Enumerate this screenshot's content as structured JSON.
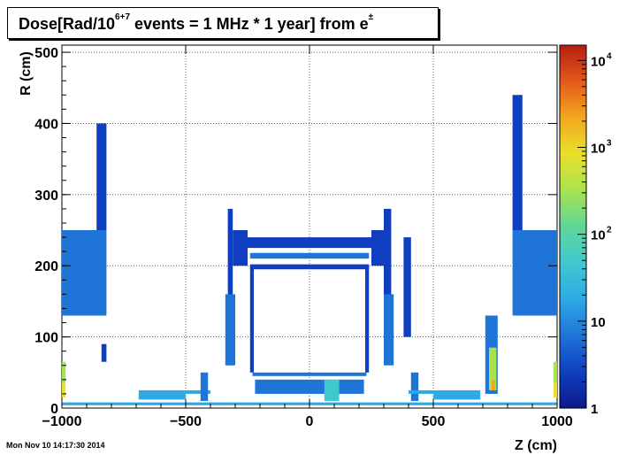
{
  "chart_data": {
    "type": "heatmap",
    "title_parts": {
      "pre": "Dose[Rad/10",
      "sup1": "6+7",
      "mid": " events = 1 MHz * 1 year] from e",
      "sup2": "±"
    },
    "xlabel": "Z (cm)",
    "ylabel": "R (cm)",
    "xlim": [
      -1000,
      1000
    ],
    "ylim": [
      0,
      510
    ],
    "x_ticks": [
      {
        "value": -1000,
        "label": "−1000"
      },
      {
        "value": -500,
        "label": "−500"
      },
      {
        "value": 0,
        "label": "0"
      },
      {
        "value": 500,
        "label": "500"
      },
      {
        "value": 1000,
        "label": "1000"
      }
    ],
    "y_ticks": [
      {
        "value": 0,
        "label": "0"
      },
      {
        "value": 100,
        "label": "100"
      },
      {
        "value": 200,
        "label": "200"
      },
      {
        "value": 300,
        "label": "300"
      },
      {
        "value": 400,
        "label": "400"
      },
      {
        "value": 500,
        "label": "500"
      }
    ],
    "grid": true,
    "colorscale": "log",
    "zlim": [
      1,
      15000
    ],
    "colorbar_ticks": [
      {
        "value": 1,
        "base": "1",
        "exp": ""
      },
      {
        "value": 10,
        "base": "10",
        "exp": ""
      },
      {
        "value": 100,
        "base": "10",
        "exp": "2"
      },
      {
        "value": 1000,
        "base": "10",
        "exp": "3"
      },
      {
        "value": 10000,
        "base": "10",
        "exp": "4"
      }
    ],
    "colormap": [
      "#0c1a8c",
      "#0f3fc0",
      "#1f74d8",
      "#2ea9e6",
      "#3fc9cf",
      "#5fd79a",
      "#a9e24f",
      "#e8e02a",
      "#f2a81f",
      "#e4591a",
      "#b51e12"
    ],
    "regions": [
      {
        "z": [
          -1000,
          -820
        ],
        "r": [
          130,
          250
        ],
        "dose": 8
      },
      {
        "z": [
          -860,
          -820
        ],
        "r": [
          250,
          400
        ],
        "dose": 2
      },
      {
        "z": [
          -1000,
          -985
        ],
        "r": [
          35,
          65
        ],
        "dose": 300
      },
      {
        "z": [
          -1000,
          -985
        ],
        "r": [
          15,
          35
        ],
        "dose": 1200
      },
      {
        "z": [
          -840,
          -820
        ],
        "r": [
          65,
          90
        ],
        "dose": 4
      },
      {
        "z": [
          -690,
          -500
        ],
        "r": [
          12,
          20
        ],
        "dose": 12
      },
      {
        "z": [
          -690,
          -400
        ],
        "r": [
          20,
          25
        ],
        "dose": 20
      },
      {
        "z": [
          -440,
          -410
        ],
        "r": [
          10,
          50
        ],
        "dose": 6
      },
      {
        "z": [
          -330,
          -310
        ],
        "r": [
          130,
          280
        ],
        "dose": 3
      },
      {
        "z": [
          -340,
          -300
        ],
        "r": [
          60,
          160
        ],
        "dose": 5
      },
      {
        "z": [
          -310,
          -250
        ],
        "r": [
          200,
          250
        ],
        "dose": 3
      },
      {
        "z": [
          -250,
          250
        ],
        "r": [
          225,
          240
        ],
        "dose": 4
      },
      {
        "z": [
          -240,
          240
        ],
        "r": [
          210,
          218
        ],
        "dose": 5
      },
      {
        "z": [
          -240,
          240
        ],
        "r": [
          195,
          202
        ],
        "dose": 3
      },
      {
        "z": [
          -240,
          -225
        ],
        "r": [
          50,
          200
        ],
        "dose": 4
      },
      {
        "z": [
          225,
          240
        ],
        "r": [
          50,
          200
        ],
        "dose": 4
      },
      {
        "z": [
          -230,
          230
        ],
        "r": [
          45,
          50
        ],
        "dose": 6
      },
      {
        "z": [
          -220,
          220
        ],
        "r": [
          20,
          40
        ],
        "dose": 8
      },
      {
        "z": [
          60,
          120
        ],
        "r": [
          10,
          40
        ],
        "dose": 30
      },
      {
        "z": [
          250,
          310
        ],
        "r": [
          200,
          250
        ],
        "dose": 3
      },
      {
        "z": [
          300,
          330
        ],
        "r": [
          130,
          280
        ],
        "dose": 3
      },
      {
        "z": [
          300,
          340
        ],
        "r": [
          60,
          160
        ],
        "dose": 5
      },
      {
        "z": [
          380,
          410
        ],
        "r": [
          100,
          240
        ],
        "dose": 3
      },
      {
        "z": [
          410,
          440
        ],
        "r": [
          10,
          50
        ],
        "dose": 6
      },
      {
        "z": [
          400,
          690
        ],
        "r": [
          20,
          25
        ],
        "dose": 20
      },
      {
        "z": [
          500,
          690
        ],
        "r": [
          12,
          20
        ],
        "dose": 12
      },
      {
        "z": [
          710,
          760
        ],
        "r": [
          20,
          130
        ],
        "dose": 6
      },
      {
        "z": [
          725,
          755
        ],
        "r": [
          25,
          85
        ],
        "dose": 400
      },
      {
        "z": [
          735,
          750
        ],
        "r": [
          25,
          40
        ],
        "dose": 3000
      },
      {
        "z": [
          820,
          1000
        ],
        "r": [
          130,
          250
        ],
        "dose": 8
      },
      {
        "z": [
          820,
          860
        ],
        "r": [
          250,
          440
        ],
        "dose": 2
      },
      {
        "z": [
          985,
          1000
        ],
        "r": [
          35,
          65
        ],
        "dose": 300
      },
      {
        "z": [
          985,
          1000
        ],
        "r": [
          15,
          35
        ],
        "dose": 1200
      },
      {
        "z": [
          -1000,
          1000
        ],
        "r": [
          4,
          8
        ],
        "dose": 15
      }
    ]
  },
  "footer": {
    "timestamp": "Mon Nov 10 14:17:30 2014"
  }
}
